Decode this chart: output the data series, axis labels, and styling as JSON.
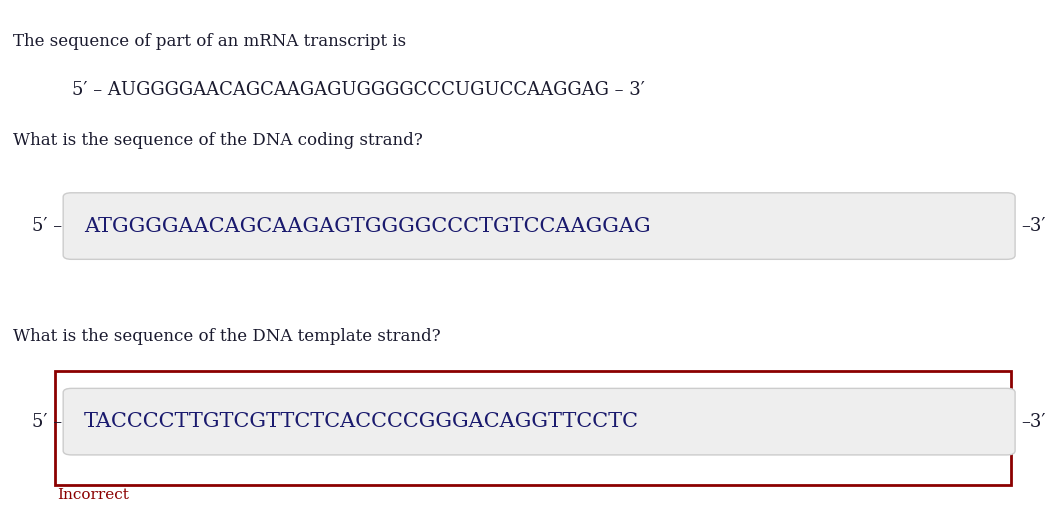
{
  "bg_color": "#ffffff",
  "title_text": "The sequence of part of an mRNA transcript is",
  "mrna_line": "5′ – AUGGGGAACAGCAAGAGUGGGGCCCUGUCCAAGGAG – 3′",
  "question1": "What is the sequence of the DNA coding strand?",
  "question2": "What is the sequence of the DNA template strand?",
  "label_5prime": "5′ –",
  "label_3prime": "–3′",
  "coding_seq": "ATGGGGAACAGCAAGAGTGGGGCCCTGTCCAAGGAG",
  "template_seq": "TACCCCTTGTCGTTCTCACCCCGGGACAGGTTCCTC",
  "incorrect_text": "Incorrect",
  "incorrect_color": "#8B0000",
  "box_color": "#eeeeee",
  "box_border_color": "#cccccc",
  "red_border_color": "#8B0000",
  "text_color": "#1a1a2e",
  "seq_color": "#1a1a6e",
  "font_size_title": 12,
  "font_size_mrna": 13,
  "font_size_question": 12,
  "font_size_label": 13,
  "font_size_seq": 15,
  "font_size_incorrect": 11
}
